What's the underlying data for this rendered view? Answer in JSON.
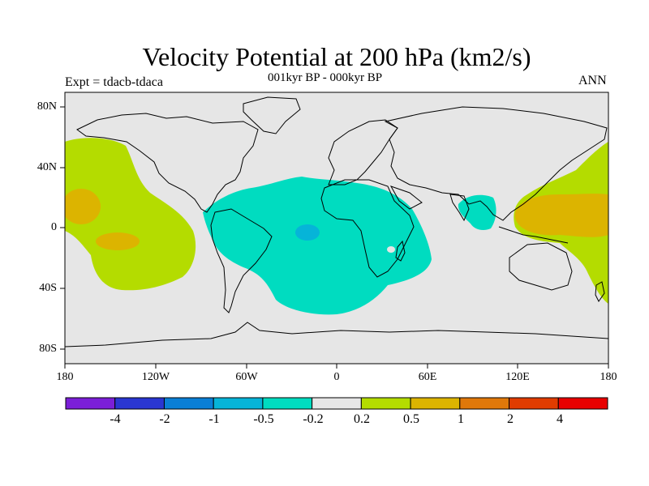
{
  "title": "Velocity Potential at 200 hPa (km2/s)",
  "subtitle": "001kyr BP - 000kyr BP",
  "experiment_label": "Expt = tdacb-tdaca",
  "season": "ANN",
  "lat_labels": [
    "80N",
    "40N",
    "0",
    "40S",
    "80S"
  ],
  "lon_labels": [
    "180",
    "120W",
    "60W",
    "0",
    "60E",
    "120E",
    "180"
  ],
  "colorbar": {
    "labels": [
      "-4",
      "-2",
      "-1",
      "-0.5",
      "-0.2",
      "0.2",
      "0.5",
      "1",
      "2",
      "4"
    ],
    "colors": [
      "#7b1fd8",
      "#2a36d2",
      "#0a7fd6",
      "#06b4d8",
      "#00dcc0",
      "#e6e6e6",
      "#b4dc00",
      "#dcb400",
      "#e0780a",
      "#e03c00",
      "#e80000"
    ]
  },
  "chart_data": {
    "type": "map",
    "projection": "cylindrical equidistant",
    "variable": "velocity potential difference",
    "level": "200 hPa",
    "units": "km2/s",
    "lon_range": [
      -180,
      180
    ],
    "lat_range": [
      -90,
      90
    ],
    "contour_levels": [
      -4,
      -2,
      -1,
      -0.5,
      -0.2,
      0.2,
      0.5,
      1,
      2,
      4
    ],
    "regions": [
      {
        "name": "Atlantic-Africa negative anomaly",
        "class": "-0.5 to -0.2",
        "color": "#00dcc0"
      },
      {
        "name": "South Atlantic minimum",
        "class": "-1 to -0.5",
        "color": "#06b4d8"
      },
      {
        "name": "Indian Ocean negative anomaly",
        "class": "-0.5 to -0.2",
        "color": "#00dcc0"
      },
      {
        "name": "East Pacific positive anomaly",
        "class": "0.2 to 0.5",
        "color": "#b4dc00"
      },
      {
        "name": "East Pacific maxima",
        "class": "0.5 to 1",
        "color": "#dcb400"
      },
      {
        "name": "West Pacific positive anomaly",
        "class": "0.2 to 0.5",
        "color": "#b4dc00"
      },
      {
        "name": "West Pacific maximum",
        "class": "0.5 to 1",
        "color": "#dcb400"
      }
    ]
  }
}
